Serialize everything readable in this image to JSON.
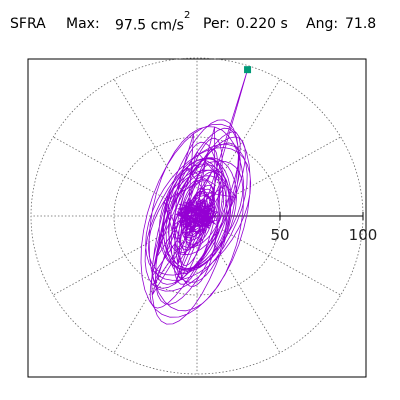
{
  "header": {
    "station": "SFRA",
    "max_label": "Max:",
    "max_value": "97.5 cm/s",
    "max_exp": "2",
    "per_label": "Per:",
    "per_value": "0.220 s",
    "ang_label": "Ang:",
    "ang_value": "71.8"
  },
  "chart_data": {
    "type": "scatter",
    "coordinate_system": "polar",
    "rings": [
      50,
      100
    ],
    "radial_lim": [
      0,
      100
    ],
    "tick_labels": [
      "50",
      "100"
    ],
    "spoke_step_deg": 30,
    "grid": true,
    "max_point": {
      "amplitude": 97.5,
      "angle_deg": 71.8
    },
    "trace_color": "#9400d3",
    "marker_color": "#009977",
    "grid_color": "#666666"
  }
}
